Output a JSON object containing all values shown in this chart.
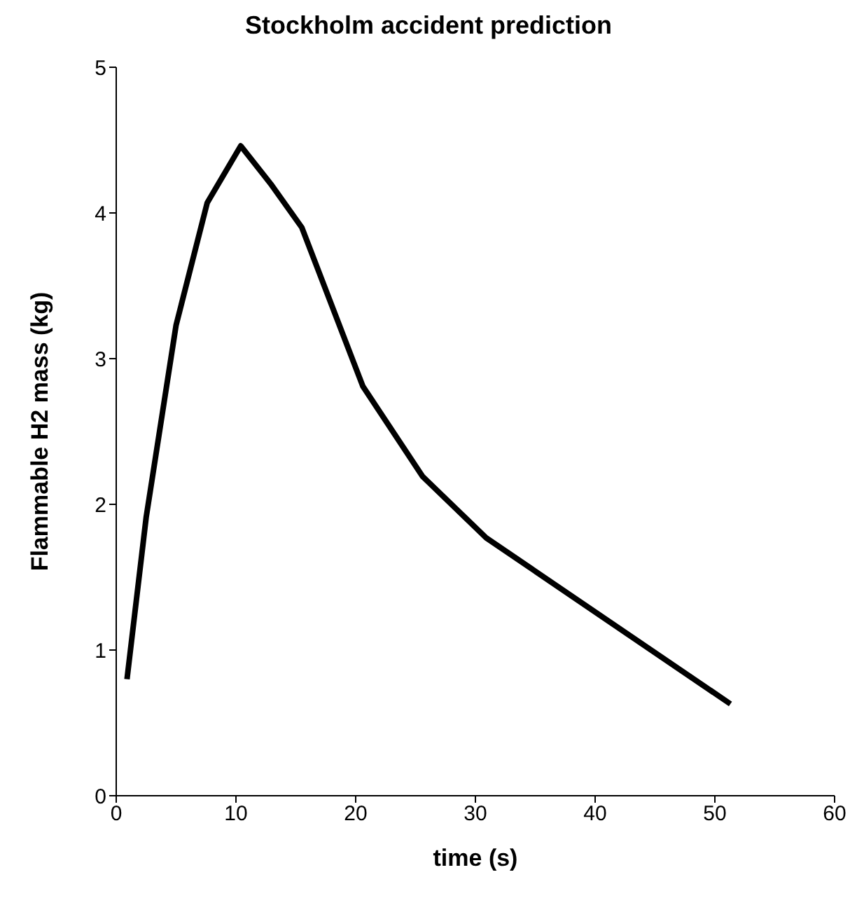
{
  "chart_data": {
    "type": "line",
    "title": "Stockholm accident prediction",
    "xlabel": "time (s)",
    "ylabel": "Flammable H2 mass (kg)",
    "x": [
      0.9,
      2.5,
      5.0,
      7.6,
      10.4,
      12.9,
      15.5,
      20.6,
      25.6,
      30.9,
      51.3
    ],
    "series": [
      {
        "color": "#000000",
        "values": [
          0.8,
          1.91,
          3.23,
          4.07,
          4.46,
          4.2,
          3.9,
          2.81,
          2.19,
          1.77,
          0.63
        ]
      }
    ],
    "xlim": [
      0,
      60
    ],
    "xticks": [
      0,
      10,
      20,
      30,
      40,
      50,
      60
    ],
    "ylim": [
      0,
      5
    ],
    "yticks": [
      0,
      1,
      2,
      3,
      4,
      5
    ],
    "grid": false,
    "legend": false,
    "marker": "none",
    "line_style": "solid"
  }
}
